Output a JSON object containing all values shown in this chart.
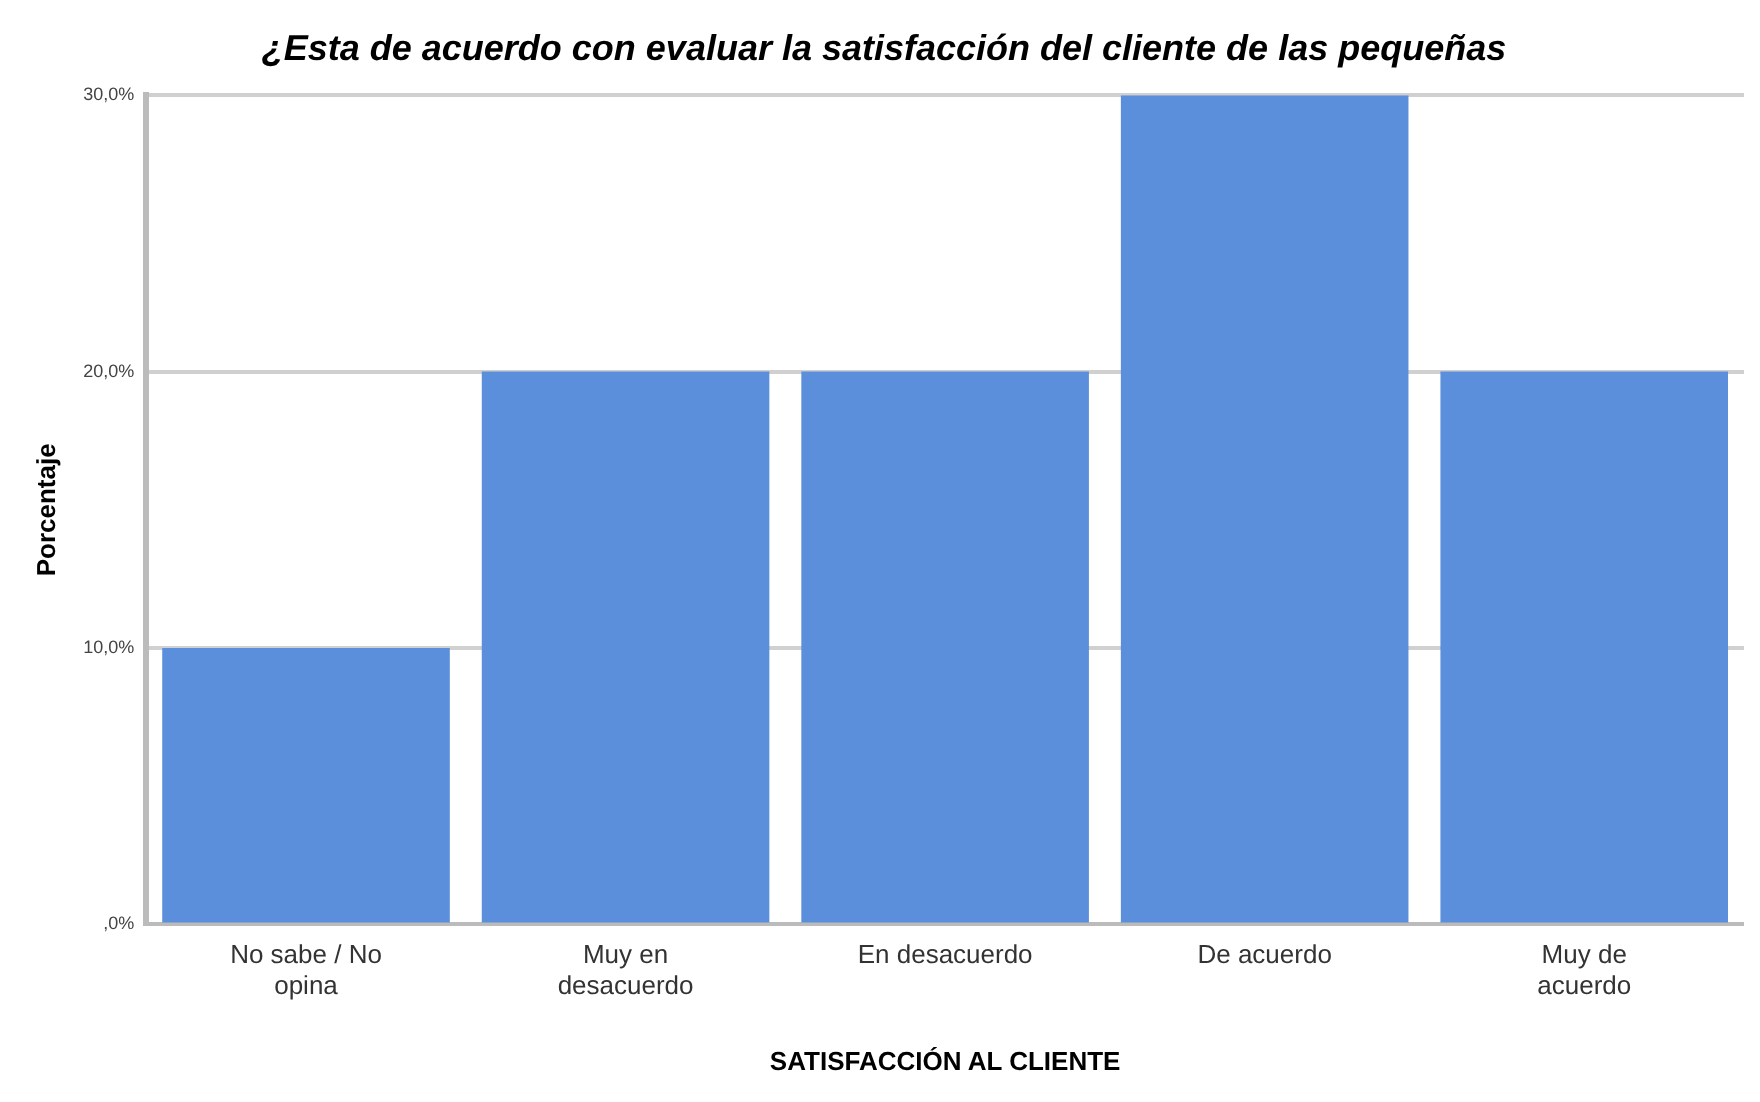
{
  "chart_data": {
    "type": "bar",
    "title": "¿Esta de acuerdo con evaluar la satisfacción del cliente de las pequeñas",
    "xlabel": "SATISFACCIÓN AL CLIENTE",
    "ylabel": "Porcentaje",
    "categories": [
      "No sabe / No opina",
      "Muy en desacuerdo",
      "En desacuerdo",
      "De acuerdo",
      "Muy de acuerdo"
    ],
    "values": [
      10,
      20,
      20,
      30,
      20
    ],
    "color": "#5b8fdc",
    "ylim": [
      0,
      30
    ],
    "yticks": [
      {
        "value": 0,
        "label": ",0%"
      },
      {
        "value": 10,
        "label": "10,0%"
      },
      {
        "value": 20,
        "label": "20,0%"
      },
      {
        "value": 30,
        "label": "30,0%"
      }
    ],
    "grid": "y"
  }
}
